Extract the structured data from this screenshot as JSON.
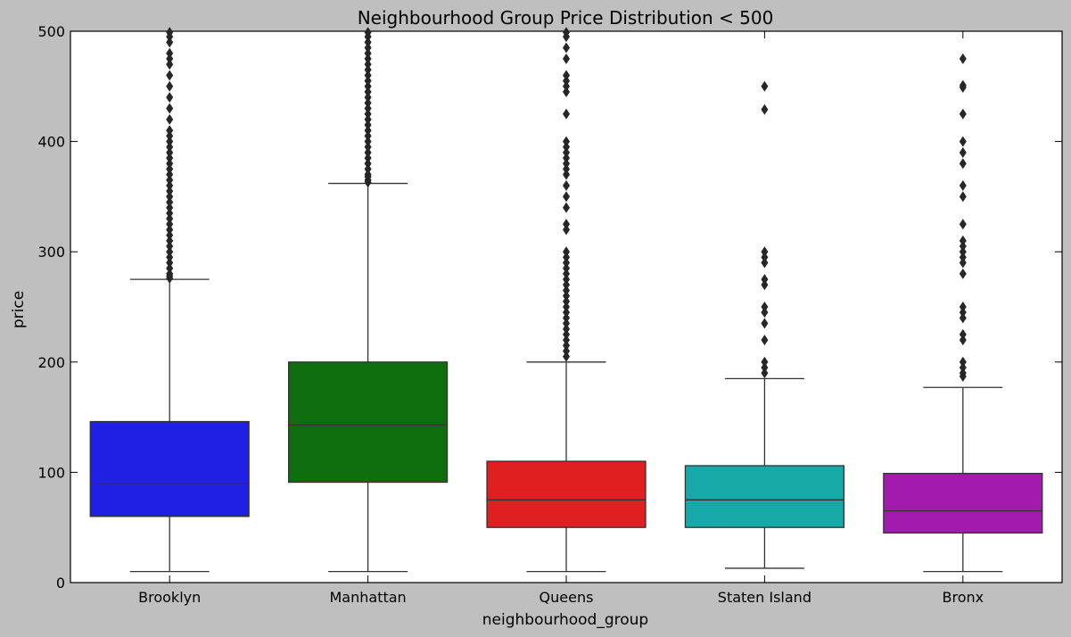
{
  "chart_data": {
    "type": "boxplot",
    "title": "Neighbourhood Group Price Distribution < 500",
    "xlabel": "neighbourhood_group",
    "ylabel": "price",
    "ylim": [
      0,
      500
    ],
    "yticks": [
      0,
      100,
      200,
      300,
      400,
      500
    ],
    "categories": [
      "Brooklyn",
      "Manhattan",
      "Queens",
      "Staten Island",
      "Bronx"
    ],
    "boxes": [
      {
        "name": "Brooklyn",
        "color": "#1f20e3",
        "whisker_low": 10,
        "q1": 60,
        "median": 90,
        "q3": 146,
        "whisker_high": 275,
        "outliers": [
          276,
          278,
          280,
          285,
          290,
          295,
          300,
          305,
          310,
          315,
          320,
          325,
          330,
          335,
          340,
          345,
          350,
          355,
          360,
          365,
          370,
          375,
          380,
          385,
          390,
          395,
          400,
          405,
          410,
          420,
          430,
          440,
          450,
          460,
          470,
          475,
          480,
          490,
          495,
          499
        ]
      },
      {
        "name": "Manhattan",
        "color": "#0e6e0e",
        "whisker_low": 10,
        "q1": 91,
        "median": 143,
        "q3": 200,
        "whisker_high": 362,
        "outliers": [
          363,
          365,
          368,
          370,
          375,
          380,
          385,
          390,
          395,
          400,
          405,
          410,
          415,
          420,
          425,
          430,
          435,
          440,
          445,
          450,
          455,
          460,
          465,
          470,
          475,
          480,
          485,
          490,
          495,
          499
        ]
      },
      {
        "name": "Queens",
        "color": "#e02020",
        "whisker_low": 10,
        "q1": 50,
        "median": 75,
        "q3": 110,
        "whisker_high": 200,
        "outliers": [
          205,
          210,
          215,
          220,
          225,
          230,
          235,
          240,
          245,
          250,
          255,
          260,
          265,
          270,
          275,
          280,
          285,
          290,
          295,
          300,
          320,
          325,
          340,
          350,
          360,
          370,
          375,
          380,
          385,
          390,
          395,
          400,
          425,
          445,
          450,
          455,
          460,
          475,
          485,
          495,
          499
        ]
      },
      {
        "name": "Staten Island",
        "color": "#17a8a8",
        "whisker_low": 13,
        "q1": 50,
        "median": 75,
        "q3": 106,
        "whisker_high": 185,
        "outliers": [
          190,
          195,
          200,
          220,
          235,
          245,
          250,
          270,
          275,
          290,
          295,
          300,
          429,
          450
        ]
      },
      {
        "name": "Bronx",
        "color": "#a41aae",
        "whisker_low": 10,
        "q1": 45,
        "median": 65,
        "q3": 99,
        "whisker_high": 177,
        "outliers": [
          187,
          190,
          195,
          200,
          220,
          225,
          240,
          245,
          250,
          280,
          290,
          295,
          300,
          305,
          310,
          325,
          350,
          360,
          380,
          390,
          400,
          425,
          449,
          451,
          475
        ]
      }
    ]
  }
}
